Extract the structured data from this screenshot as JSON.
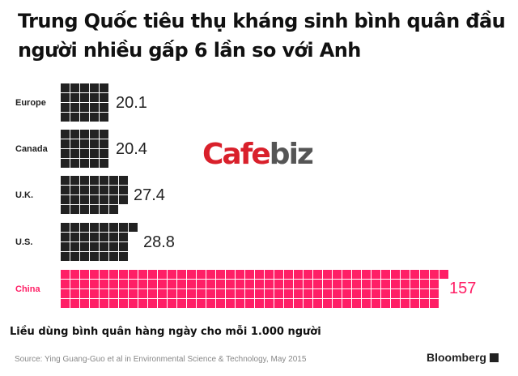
{
  "title": "Trung Quốc tiêu thụ kháng sinh bình quân đầu người nhiều gấp 6 lần so với Anh",
  "subtitle": "Liều dùng bình quân hàng ngày cho mỗi 1.000 người",
  "source": "Source: Ying Guang-Guo et al in Environmental Science & Technology, May 2015",
  "brand": "Bloomberg",
  "watermark": {
    "part1": "Cafe",
    "part2": "biz"
  },
  "colors": {
    "default": "#222222",
    "highlight": "#ff1f66"
  },
  "rows": [
    {
      "label": "Europe",
      "value": "20.1",
      "squares": 20,
      "cols": 5
    },
    {
      "label": "Canada",
      "value": "20.4",
      "squares": 20,
      "cols": 5
    },
    {
      "label": "U.K.",
      "value": "27.4",
      "squares": 27,
      "cols": 7
    },
    {
      "label": "U.S.",
      "value": "28.8",
      "squares": 29,
      "cols": 8
    },
    {
      "label": "China",
      "value": "157",
      "squares": 157,
      "cols": 40
    }
  ],
  "chart_data": {
    "type": "bar",
    "title": "Trung Quốc tiêu thụ kháng sinh bình quân đầu người nhiều gấp 6 lần so với Anh",
    "subtitle": "Liều dùng bình quân hàng ngày cho mỗi 1.000 người",
    "categories": [
      "Europe",
      "Canada",
      "U.K.",
      "U.S.",
      "China"
    ],
    "values": [
      20.1,
      20.4,
      27.4,
      28.8,
      157
    ],
    "xlabel": "",
    "ylabel": "",
    "note": "Waffle/unit chart: each square = 1 daily dose per 1,000 people; China highlighted in pink"
  }
}
